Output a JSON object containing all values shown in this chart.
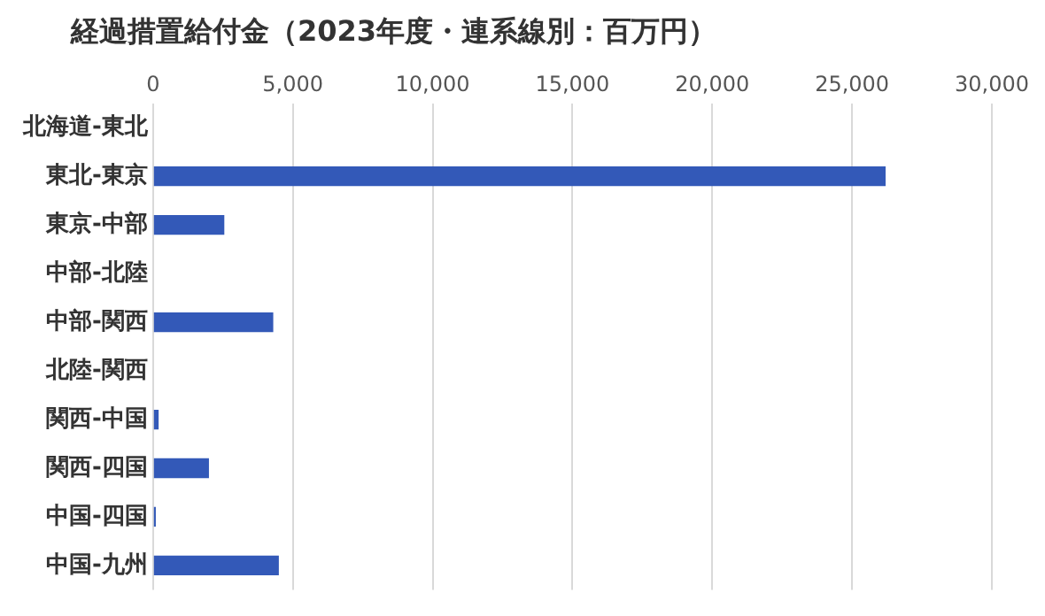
{
  "chart_data": {
    "type": "bar",
    "orientation": "horizontal",
    "title": "経過措置給付金（2023年度・連系線別：百万円）",
    "categories": [
      "北海道-東北",
      "東北-東京",
      "東京-中部",
      "中部-北陸",
      "中部-関西",
      "北陸-関西",
      "関西-中国",
      "関西-四国",
      "中国-四国",
      "中国-九州"
    ],
    "values": [
      0,
      26200,
      2550,
      0,
      4300,
      0,
      200,
      2000,
      100,
      4500
    ],
    "color": "#3359b8",
    "xlim": [
      0,
      30000
    ],
    "xticks": [
      {
        "value": 0,
        "label": "0"
      },
      {
        "value": 5000,
        "label": "5,000"
      },
      {
        "value": 10000,
        "label": "10,000"
      },
      {
        "value": 15000,
        "label": "15,000"
      },
      {
        "value": 20000,
        "label": "20,000"
      },
      {
        "value": 25000,
        "label": "25,000"
      },
      {
        "value": 30000,
        "label": "30,000"
      }
    ],
    "grid": "x"
  }
}
